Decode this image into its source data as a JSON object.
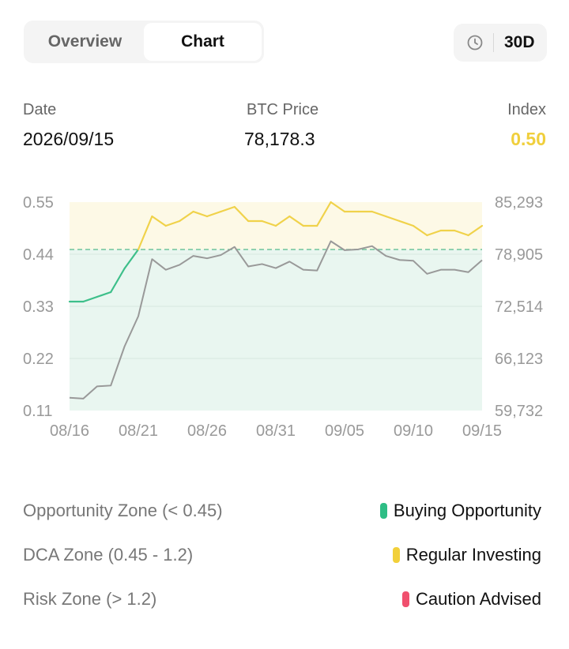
{
  "tabs": [
    {
      "label": "Overview",
      "active": false
    },
    {
      "label": "Chart",
      "active": true
    }
  ],
  "period": {
    "label": "30D",
    "icon": "clock-icon"
  },
  "stats": {
    "date_label": "Date",
    "date_value": "2026/09/15",
    "price_label": "BTC Price",
    "price_value": "78,178.3",
    "index_label": "Index",
    "index_value": "0.50",
    "index_color": "#f0cf3c"
  },
  "chart_data": {
    "type": "line",
    "x": [
      "08/16",
      "08/17",
      "08/18",
      "08/19",
      "08/20",
      "08/21",
      "08/22",
      "08/23",
      "08/24",
      "08/25",
      "08/26",
      "08/27",
      "08/28",
      "08/29",
      "08/30",
      "08/31",
      "09/01",
      "09/02",
      "09/03",
      "09/04",
      "09/05",
      "09/06",
      "09/07",
      "09/08",
      "09/09",
      "09/10",
      "09/11",
      "09/12",
      "09/13",
      "09/14",
      "09/15"
    ],
    "x_tick_labels": [
      "08/16",
      "08/21",
      "08/26",
      "08/31",
      "09/05",
      "09/10",
      "09/15"
    ],
    "y_left": {
      "ticks": [
        "0.55",
        "0.44",
        "0.33",
        "0.22",
        "0.11"
      ],
      "range": [
        0.11,
        0.55
      ]
    },
    "y_right": {
      "ticks": [
        "85,293",
        "78,905",
        "72,514",
        "66,123",
        "59,732"
      ],
      "range": [
        59732,
        85293
      ]
    },
    "threshold": 0.45,
    "grid": true,
    "series": [
      {
        "axis": "left",
        "color_below": "#3dbf8a",
        "color_above": "#f0d24a",
        "values": [
          0.34,
          0.34,
          0.35,
          0.36,
          0.41,
          0.45,
          0.52,
          0.5,
          0.51,
          0.53,
          0.52,
          0.53,
          0.54,
          0.51,
          0.51,
          0.5,
          0.52,
          0.5,
          0.5,
          0.55,
          0.53,
          0.53,
          0.53,
          0.52,
          0.51,
          0.5,
          0.48,
          0.49,
          0.49,
          0.48,
          0.5
        ]
      },
      {
        "axis": "right",
        "color": "#999999",
        "values": [
          61300,
          61200,
          62700,
          62800,
          67600,
          71300,
          78300,
          77000,
          77600,
          78700,
          78400,
          78800,
          79800,
          77400,
          77700,
          77200,
          78000,
          77000,
          76900,
          80500,
          79400,
          79500,
          79900,
          78700,
          78200,
          78100,
          76500,
          77000,
          77000,
          76700,
          78178
        ]
      }
    ]
  },
  "legend": [
    {
      "zone": "Opportunity Zone (< 0.45)",
      "tag": "Buying Opportunity",
      "color": "#2ebd85"
    },
    {
      "zone": "DCA Zone (0.45 - 1.2)",
      "tag": "Regular Investing",
      "color": "#f2d03a"
    },
    {
      "zone": "Risk Zone (> 1.2)",
      "tag": "Caution Advised",
      "color": "#f0506e"
    }
  ]
}
